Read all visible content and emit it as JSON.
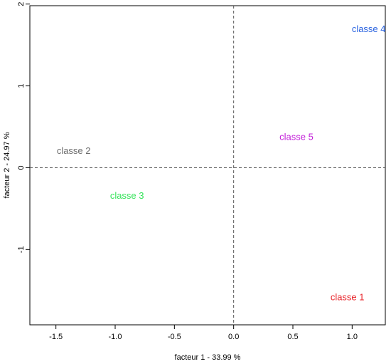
{
  "chart_data": {
    "type": "scatter",
    "title": "",
    "xlabel": "facteur  1  - 33.99 %",
    "ylabel": "facteur  2  - 24.97 %",
    "xlim": [
      -1.72,
      1.28
    ],
    "ylim": [
      -1.92,
      1.98
    ],
    "xticks": [
      -1.5,
      -1.0,
      -0.5,
      0.0,
      0.5,
      1.0
    ],
    "xtick_labels": [
      "-1.5",
      "-1.0",
      "-0.5",
      "0.0",
      "0.5",
      "1.0"
    ],
    "yticks": [
      -1,
      0,
      1,
      2
    ],
    "ytick_labels": [
      "-1",
      "0",
      "1",
      "2"
    ],
    "reference_lines": {
      "x": 0,
      "y": 0,
      "style": "dashed"
    },
    "grid": false,
    "legend": "none",
    "points": [
      {
        "label": "classe 1",
        "x": 0.96,
        "y": -1.59,
        "color": "#e8242a"
      },
      {
        "label": "classe 2",
        "x": -1.35,
        "y": 0.2,
        "color": "#6b6b6b"
      },
      {
        "label": "classe 3",
        "x": -0.9,
        "y": -0.35,
        "color": "#35e35a"
      },
      {
        "label": "classe 4",
        "x": 1.14,
        "y": 1.69,
        "color": "#2a63e0"
      },
      {
        "label": "classe 5",
        "x": 0.53,
        "y": 0.37,
        "color": "#c21ed8"
      }
    ]
  }
}
